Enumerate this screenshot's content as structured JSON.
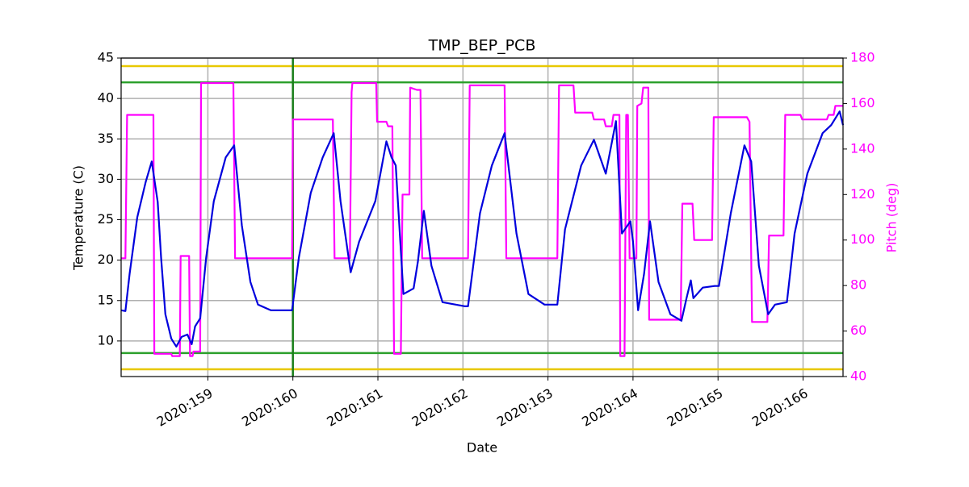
{
  "chart_data": {
    "type": "line",
    "title": "TMP_BEP_PCB",
    "xlabel": "Date",
    "ylabel": "Temperature (C)",
    "y2label": "Pitch (deg)",
    "y2color": "#ff00ff",
    "grid": true,
    "xlim": [
      157.98,
      166.47
    ],
    "xticks": [
      {
        "value": 159,
        "label": "2020:159"
      },
      {
        "value": 160,
        "label": "2020:160"
      },
      {
        "value": 161,
        "label": "2020:161"
      },
      {
        "value": 162,
        "label": "2020:162"
      },
      {
        "value": 163,
        "label": "2020:163"
      },
      {
        "value": 164,
        "label": "2020:164"
      },
      {
        "value": 165,
        "label": "2020:165"
      },
      {
        "value": 166,
        "label": "2020:166"
      }
    ],
    "ylim": [
      5.6,
      45
    ],
    "yticks": [
      10,
      15,
      20,
      25,
      30,
      35,
      40,
      45
    ],
    "y2lim": [
      40,
      180
    ],
    "y2ticks": [
      40,
      60,
      80,
      100,
      120,
      140,
      160,
      180
    ],
    "hlines": [
      {
        "value": 44,
        "color": "#e8c800"
      },
      {
        "value": 6.5,
        "color": "#e8c800"
      },
      {
        "value": 42,
        "color": "#2ca02c"
      },
      {
        "value": 8.5,
        "color": "#2ca02c"
      }
    ],
    "vlines": [
      {
        "value": 160,
        "color": "#1a7f1a"
      }
    ],
    "series": [
      {
        "color": "#ff00ff",
        "axis": "y2",
        "x": [
          157.98,
          158.03,
          158.05,
          158.36,
          158.37,
          158.57,
          158.58,
          158.67,
          158.68,
          158.78,
          158.79,
          158.82,
          158.83,
          158.91,
          158.92,
          159.3,
          159.32,
          159.99,
          160.0,
          160.47,
          160.49,
          160.67,
          160.69,
          160.7,
          160.98,
          160.99,
          161.1,
          161.12,
          161.17,
          161.19,
          161.27,
          161.29,
          161.37,
          161.38,
          161.46,
          161.5,
          161.52,
          162.06,
          162.08,
          162.49,
          162.51,
          163.11,
          163.13,
          163.3,
          163.32,
          163.52,
          163.54,
          163.66,
          163.68,
          163.75,
          163.77,
          163.84,
          163.85,
          163.9,
          163.92,
          163.94,
          163.96,
          164.04,
          164.05,
          164.1,
          164.12,
          164.18,
          164.19,
          164.56,
          164.58,
          164.7,
          164.72,
          164.93,
          164.95,
          165.34,
          165.37,
          165.4,
          165.58,
          165.6,
          165.77,
          165.79,
          165.97,
          165.99,
          166.28,
          166.3,
          166.36,
          166.38,
          166.47
        ],
        "values": [
          92,
          92,
          155,
          155,
          50,
          50,
          49,
          49,
          93,
          93,
          49,
          49,
          51,
          51,
          169,
          169,
          92,
          92,
          153,
          153,
          92,
          92,
          165,
          169,
          169,
          152,
          152,
          150,
          150,
          50,
          50,
          120,
          120,
          167,
          166,
          166,
          92,
          92,
          168,
          168,
          92,
          92,
          168,
          168,
          156,
          156,
          153,
          153,
          150,
          150,
          155,
          155,
          49,
          49,
          155,
          155,
          92,
          92,
          159,
          160,
          167,
          167,
          65,
          65,
          116,
          116,
          100,
          100,
          154,
          154,
          152,
          64,
          64,
          102,
          102,
          155,
          155,
          153,
          153,
          155,
          155,
          159,
          159
        ]
      },
      {
        "color": "#0000dd",
        "x": [
          157.98,
          158.03,
          158.08,
          158.17,
          158.27,
          158.34,
          158.41,
          158.45,
          158.5,
          158.57,
          158.63,
          158.69,
          158.76,
          158.81,
          158.85,
          158.91,
          158.98,
          159.07,
          159.21,
          159.31,
          159.4,
          159.5,
          159.59,
          159.74,
          159.99,
          160.07,
          160.21,
          160.35,
          160.48,
          160.56,
          160.68,
          160.78,
          160.97,
          161.1,
          161.16,
          161.21,
          161.3,
          161.42,
          161.47,
          161.54,
          161.63,
          161.76,
          162.02,
          162.06,
          162.2,
          162.34,
          162.49,
          162.63,
          162.77,
          162.96,
          163.11,
          163.2,
          163.39,
          163.54,
          163.68,
          163.8,
          163.87,
          163.97,
          164.0,
          164.06,
          164.13,
          164.2,
          164.3,
          164.44,
          164.57,
          164.63,
          164.68,
          164.71,
          164.82,
          164.96,
          165.01,
          165.15,
          165.31,
          165.39,
          165.48,
          165.59,
          165.67,
          165.81,
          165.9,
          166.05,
          166.23,
          166.33,
          166.43,
          166.47
        ],
        "values": [
          13.8,
          13.7,
          18.3,
          25.3,
          29.7,
          32.2,
          27.2,
          20.3,
          13.3,
          10.3,
          9.3,
          10.5,
          10.8,
          9.6,
          11.8,
          12.8,
          20.3,
          27.3,
          32.7,
          34.2,
          24.3,
          17.3,
          14.5,
          13.8,
          13.8,
          20.3,
          28.3,
          32.7,
          35.7,
          27.3,
          18.5,
          22.3,
          27.3,
          34.7,
          32.7,
          31.7,
          15.8,
          16.5,
          19.8,
          26.1,
          19.3,
          14.8,
          14.3,
          14.3,
          25.8,
          31.7,
          35.7,
          23.3,
          15.8,
          14.5,
          14.5,
          23.8,
          31.7,
          34.9,
          30.7,
          37.2,
          23.3,
          24.8,
          22.3,
          13.8,
          18.3,
          24.8,
          17.3,
          13.3,
          12.5,
          15.3,
          17.5,
          15.3,
          16.6,
          16.8,
          16.8,
          25.8,
          34.2,
          32.2,
          19.3,
          13.3,
          14.5,
          14.8,
          23.3,
          30.7,
          35.7,
          36.7,
          38.4,
          36.7
        ]
      }
    ]
  }
}
